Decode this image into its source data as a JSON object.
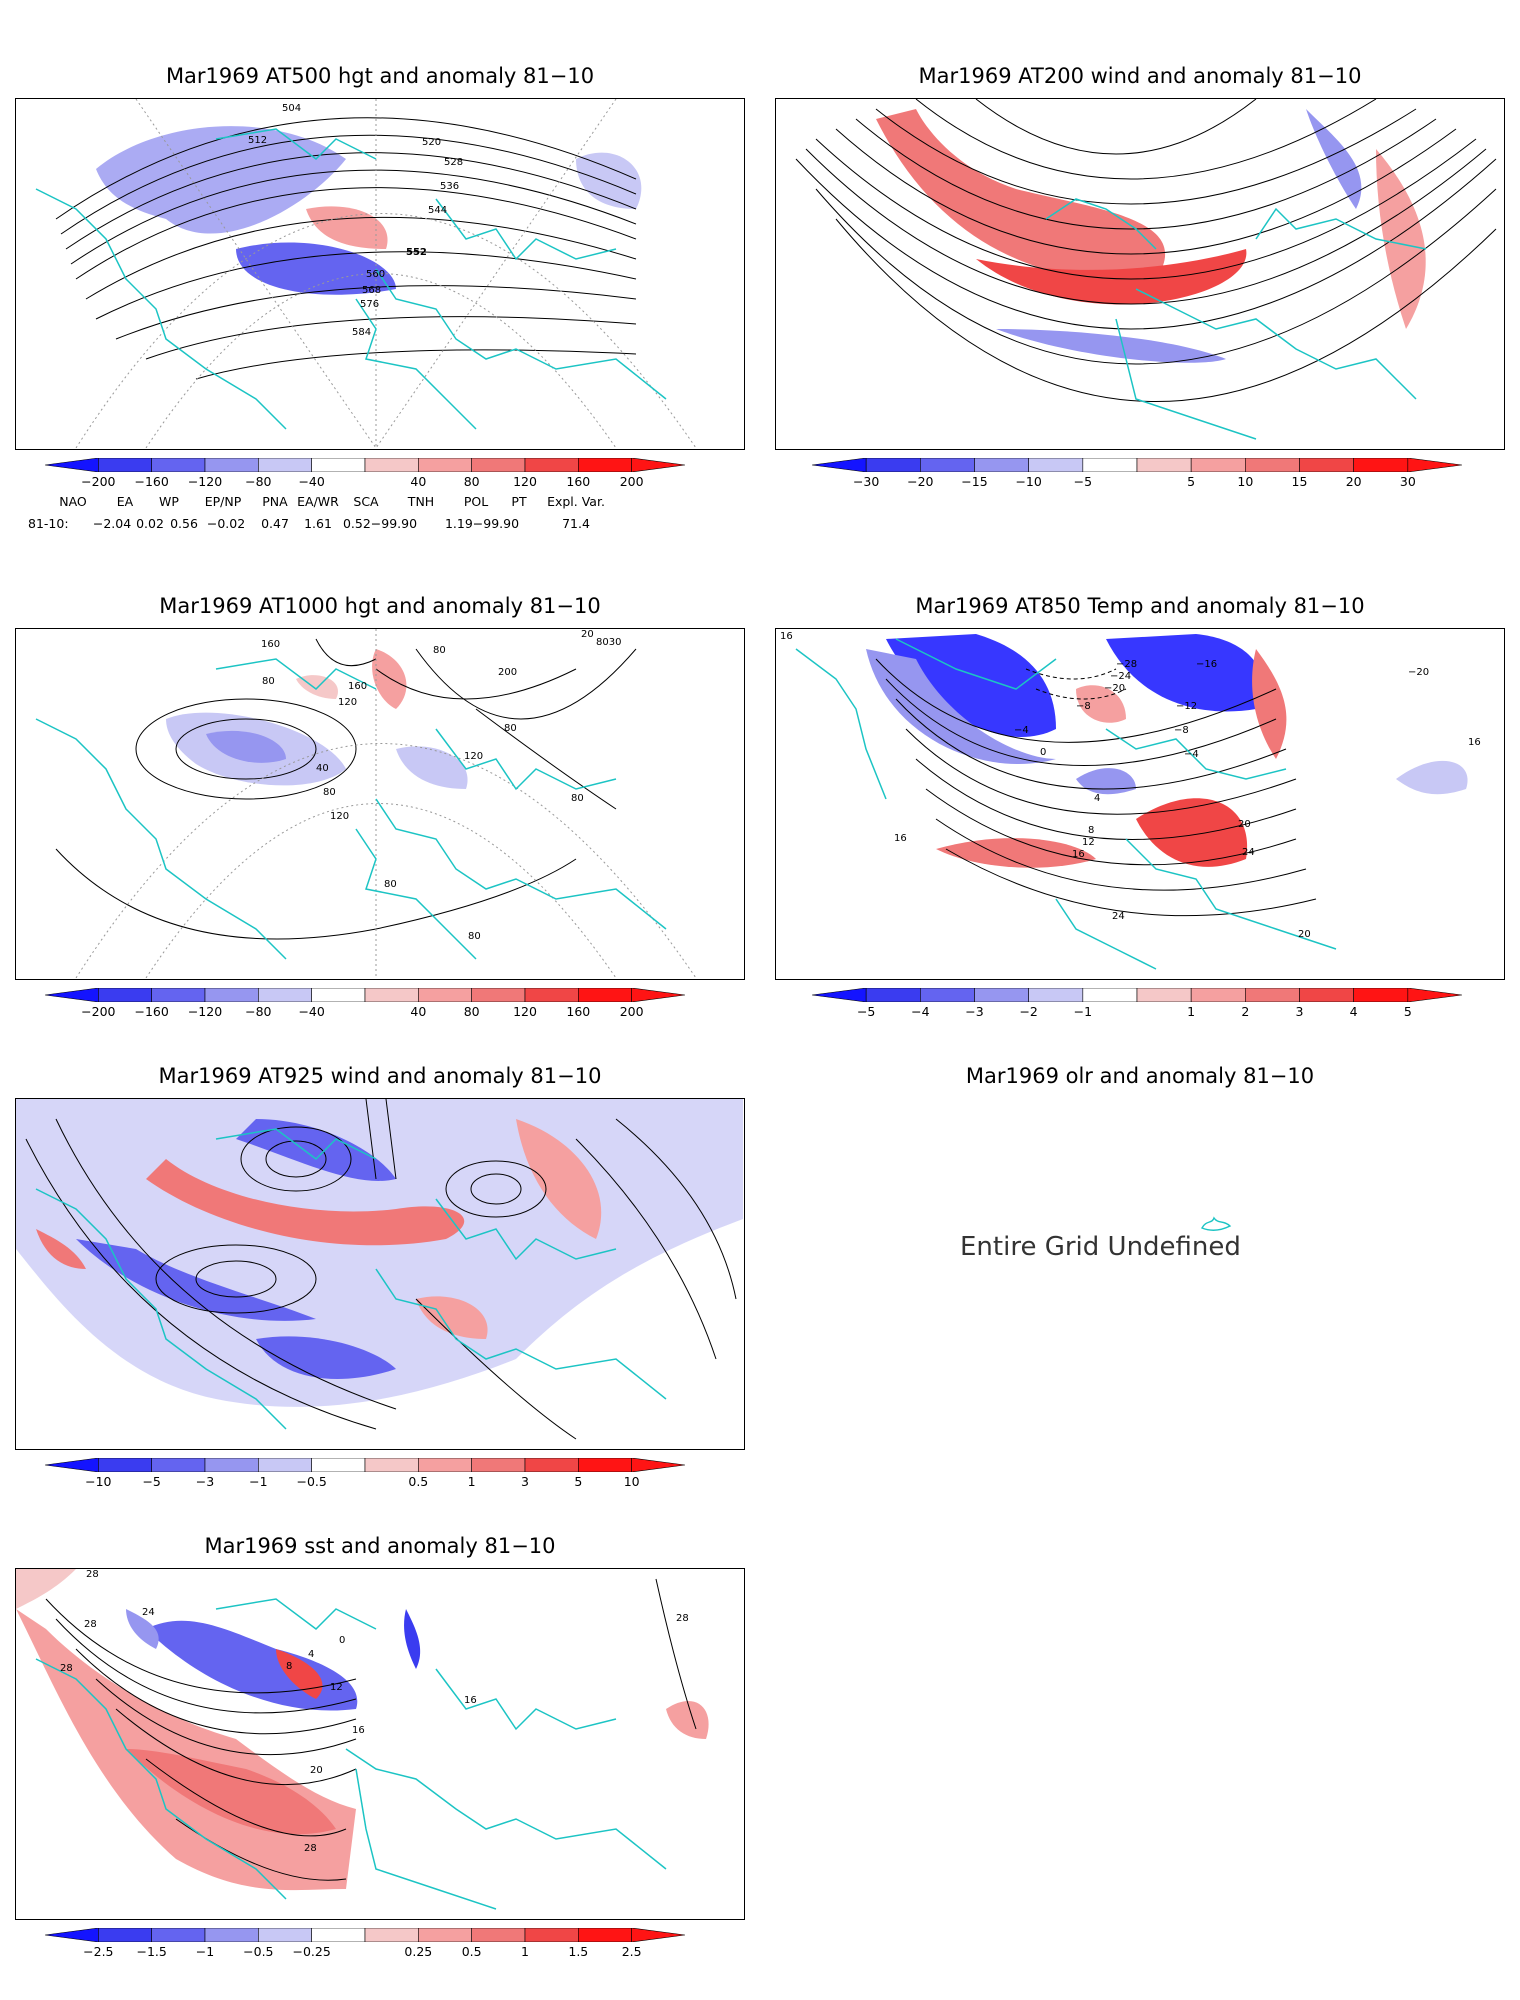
{
  "panels": [
    {
      "title": "Mar1969 AT500 hgt and anomaly 81−10",
      "contour_labels": [
        "504",
        "512",
        "520",
        "528",
        "536",
        "544",
        "552",
        "560",
        "568",
        "576",
        "584"
      ],
      "colorbar": [
        "−200",
        "−160",
        "−120",
        "−80",
        "−40",
        "40",
        "80",
        "120",
        "160",
        "200"
      ]
    },
    {
      "title": "Mar1969 AT200 wind and anomaly 81−10",
      "colorbar": [
        "−30",
        "−20",
        "−15",
        "−10",
        "−5",
        "5",
        "10",
        "15",
        "20",
        "30"
      ]
    },
    {
      "title": "Mar1969 AT1000 hgt and anomaly 81−10",
      "contour_labels": [
        "160",
        "80",
        "40",
        "80",
        "120",
        "160",
        "120",
        "200",
        "80",
        "120",
        "80",
        "80",
        "80",
        "20",
        "8030",
        "80"
      ],
      "colorbar": [
        "−200",
        "−160",
        "−120",
        "−80",
        "−40",
        "40",
        "80",
        "120",
        "160",
        "200"
      ]
    },
    {
      "title": "Mar1969 AT850 Temp and anomaly 81−10",
      "contour_labels": [
        "16",
        "−28",
        "−24",
        "−20",
        "−16",
        "−12",
        "−8",
        "−8",
        "−4",
        "−4",
        "0",
        "4",
        "8",
        "12",
        "16",
        "16",
        "20",
        "24",
        "24",
        "20",
        "16",
        "−20"
      ],
      "colorbar": [
        "−5",
        "−4",
        "−3",
        "−2",
        "−1",
        "1",
        "2",
        "3",
        "4",
        "5"
      ]
    },
    {
      "title": "Mar1969 AT925 wind and anomaly 81−10",
      "colorbar": [
        "−10",
        "−5",
        "−3",
        "−1",
        "−0.5",
        "0.5",
        "1",
        "3",
        "5",
        "10"
      ]
    },
    {
      "title": "Mar1969 olr and anomaly 81−10",
      "message": "Entire Grid Undefined"
    },
    {
      "title": "Mar1969 sst and anomaly 81−10",
      "contour_labels": [
        "28",
        "28",
        "28",
        "24",
        "0",
        "4",
        "8",
        "12",
        "16",
        "20",
        "28",
        "16",
        "28"
      ],
      "colorbar": [
        "−2.5",
        "−1.5",
        "−1",
        "−0.5",
        "−0.25",
        "0.25",
        "0.5",
        "1",
        "1.5",
        "2.5"
      ]
    }
  ],
  "indices": {
    "row_label": "81-10:",
    "headers": [
      "NAO",
      "EA",
      "WP",
      "EP/NP",
      "PNA",
      "EA/WR",
      "SCA",
      "TNH",
      "POL",
      "PT",
      "Expl. Var."
    ],
    "values": [
      "−2.04",
      "0.02",
      "0.56",
      "−0.02",
      "0.47",
      "1.61",
      "0.52−99.90",
      "1.19−99.90",
      "71.4"
    ]
  },
  "colors": {
    "coast": "#1cc4c4",
    "blue_scale": [
      "#1414ff",
      "#3a3cf0",
      "#6464f0",
      "#9696f0",
      "#c8c8f5"
    ],
    "red_scale": [
      "#f5c8c8",
      "#f5a0a0",
      "#f07878",
      "#f04646",
      "#ff1414"
    ]
  }
}
